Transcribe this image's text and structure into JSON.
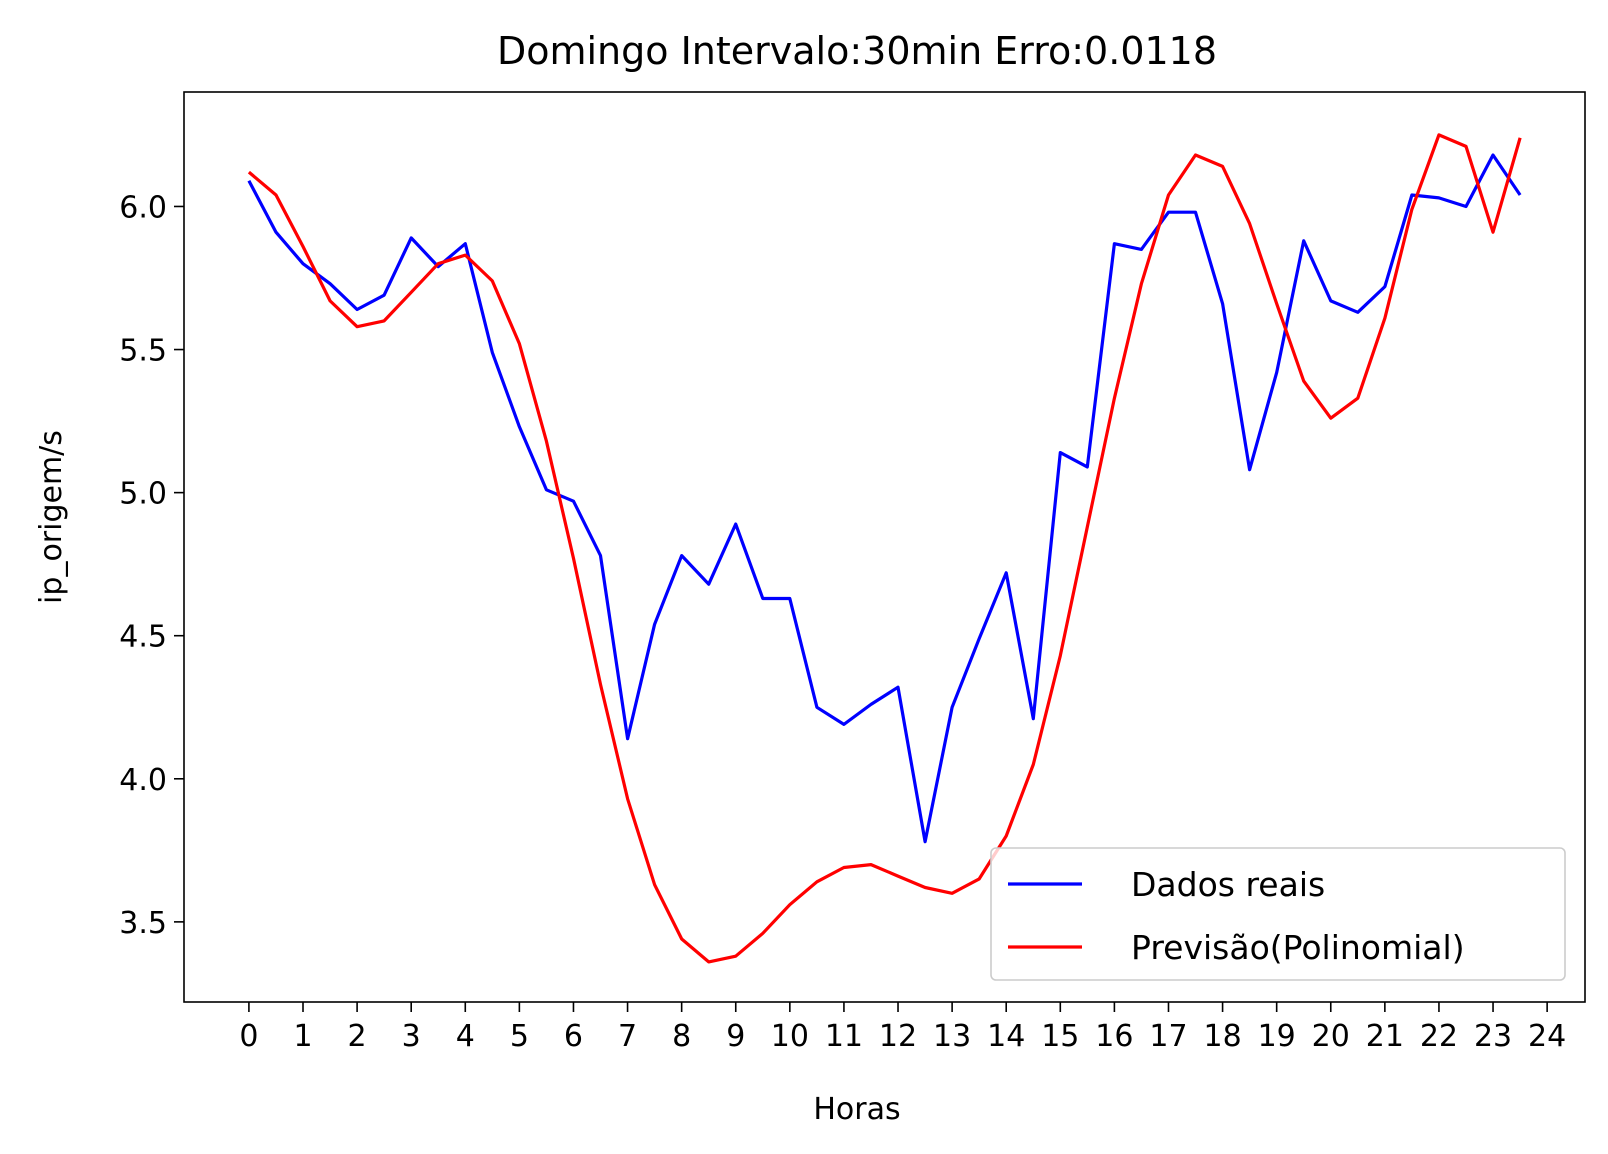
{
  "chart_data": {
    "type": "line",
    "title": "Domingo Intervalo:30min Erro:0.0118",
    "xlabel": "Horas",
    "ylabel": "ip_origem/s",
    "xlim": [
      -1.2,
      24.7
    ],
    "ylim": [
      3.22,
      6.4
    ],
    "xticks": [
      0,
      1,
      2,
      3,
      4,
      5,
      6,
      7,
      8,
      9,
      10,
      11,
      12,
      13,
      14,
      15,
      16,
      17,
      18,
      19,
      20,
      21,
      22,
      23,
      24
    ],
    "xtick_labels": [
      "0",
      "1",
      "2",
      "3",
      "4",
      "5",
      "6",
      "7",
      "8",
      "9",
      "10",
      "11",
      "12",
      "13",
      "14",
      "15",
      "16",
      "17",
      "18",
      "19",
      "20",
      "21",
      "22",
      "23",
      "24"
    ],
    "yticks": [
      3.5,
      4.0,
      4.5,
      5.0,
      5.5,
      6.0
    ],
    "ytick_labels": [
      "3.5",
      "4.0",
      "4.5",
      "5.0",
      "5.5",
      "6.0"
    ],
    "grid": false,
    "legend_position": "lower-right",
    "x": [
      0,
      0.5,
      1,
      1.5,
      2,
      2.5,
      3,
      3.5,
      4,
      4.5,
      5,
      5.5,
      6,
      6.5,
      7,
      7.5,
      8,
      8.5,
      9,
      9.5,
      10,
      10.5,
      11,
      11.5,
      12,
      12.5,
      13,
      13.5,
      14,
      14.5,
      15,
      15.5,
      16,
      16.5,
      17,
      17.5,
      18,
      18.5,
      19,
      19.5,
      20,
      20.5,
      21,
      21.5,
      22,
      22.5,
      23,
      23.5
    ],
    "series": [
      {
        "name": "Dados reais",
        "color": "#0000ff",
        "values": [
          6.09,
          5.91,
          5.8,
          5.73,
          5.64,
          5.69,
          5.89,
          5.79,
          5.87,
          5.49,
          5.23,
          5.01,
          4.97,
          4.78,
          4.14,
          4.54,
          4.78,
          4.68,
          4.89,
          4.63,
          4.63,
          4.25,
          4.19,
          4.26,
          4.32,
          3.78,
          4.25,
          4.49,
          4.72,
          4.21,
          5.14,
          5.09,
          5.87,
          5.85,
          5.98,
          5.98,
          5.66,
          5.08,
          5.42,
          5.88,
          5.67,
          5.63,
          5.72,
          6.04,
          6.03,
          6.0,
          6.18,
          6.04
        ]
      },
      {
        "name": "Previsão(Polinomial)",
        "color": "#ff0000",
        "values": [
          6.12,
          6.04,
          5.86,
          5.67,
          5.58,
          5.6,
          5.7,
          5.8,
          5.83,
          5.74,
          5.52,
          5.18,
          4.77,
          4.33,
          3.93,
          3.63,
          3.44,
          3.36,
          3.38,
          3.46,
          3.56,
          3.64,
          3.69,
          3.7,
          3.66,
          3.62,
          3.6,
          3.65,
          3.8,
          4.05,
          4.43,
          4.88,
          5.33,
          5.73,
          6.04,
          6.18,
          6.14,
          5.94,
          5.66,
          5.39,
          5.26,
          5.33,
          5.61,
          5.99,
          6.25,
          6.21,
          5.91,
          6.24
        ]
      }
    ]
  }
}
